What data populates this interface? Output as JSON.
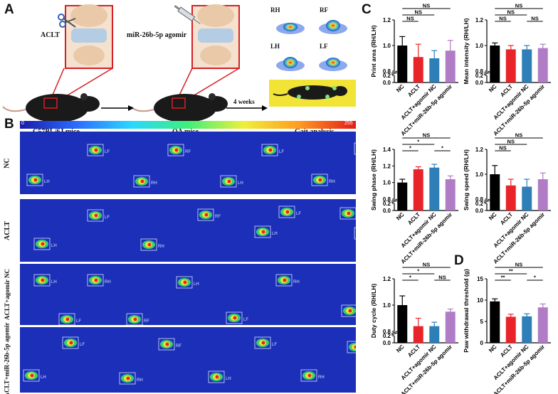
{
  "panels": {
    "A": "A",
    "B": "B",
    "C": "C",
    "D": "D"
  },
  "panel_a": {
    "aclt_label": "ACLT",
    "agomir_label": "miR-26b-5p agomir",
    "mouse1_caption": "C57BL/6J mice",
    "mouse2_caption": "OA mice",
    "time_label": "4 weeks",
    "gait_caption": "Gait analysis",
    "paw_labels": [
      "RH",
      "RF",
      "LH",
      "LF"
    ]
  },
  "panel_b": {
    "colorbar_min": "0",
    "colorbar_max": "255",
    "row_labels": [
      "NC",
      "ACLT",
      "ACLT+agomir NC",
      "ACLT+miR-26b-5p agomir"
    ],
    "paw_tags": [
      "LH",
      "LF",
      "RH",
      "RF"
    ]
  },
  "colors": {
    "NC": "#000000",
    "ACLT": "#e8242a",
    "ACLT+agomir NC": "#2e7fb8",
    "ACLT+miR-26b-5p agomir": "#b07cc6",
    "heatmap_bg": "#1c2fb8"
  },
  "chart_data": [
    {
      "type": "bar",
      "title": "",
      "ylabel": "Print area (RH/LH)",
      "categories": [
        "NC",
        "ACLT",
        "ACLT+agomir NC",
        "ACLT+miR-26b-5p agomir"
      ],
      "values": [
        1.0,
        0.91,
        0.9,
        0.96
      ],
      "errors": [
        0.07,
        0.1,
        0.06,
        0.08
      ],
      "ylim": [
        0,
        1.2
      ],
      "axis_break": [
        0.2,
        0.8
      ],
      "yticks": [
        "0.0",
        "0.2",
        "0.8",
        "1.0",
        "1.2"
      ],
      "significance": [
        {
          "pair": [
            0,
            1
          ],
          "label": "NS"
        },
        {
          "pair": [
            0,
            2
          ],
          "label": "NS"
        },
        {
          "pair": [
            0,
            3
          ],
          "label": "NS"
        }
      ]
    },
    {
      "type": "bar",
      "title": "",
      "ylabel": "Mean intensity (RH/LH)",
      "categories": [
        "NC",
        "ACLT",
        "ACLT+agomir NC",
        "ACLT+miR-26b-5p agomir"
      ],
      "values": [
        1.0,
        0.97,
        0.97,
        0.98
      ],
      "errors": [
        0.02,
        0.03,
        0.03,
        0.03
      ],
      "ylim": [
        0,
        1.2
      ],
      "axis_break": [
        0.2,
        0.8
      ],
      "yticks": [
        "0.0",
        "0.2",
        "0.8",
        "1.0",
        "1.2"
      ],
      "significance": [
        {
          "pair": [
            0,
            1
          ],
          "label": "NS"
        },
        {
          "pair": [
            0,
            2
          ],
          "label": "NS"
        },
        {
          "pair": [
            0,
            3
          ],
          "label": "NS"
        },
        {
          "pair": [
            2,
            3
          ],
          "label": "NS"
        }
      ]
    },
    {
      "type": "bar",
      "title": "",
      "ylabel": "Swing phase (RH/LH)",
      "categories": [
        "NC",
        "ACLT",
        "ACLT+agomir NC",
        "ACLT+miR-26b-5p agomir"
      ],
      "values": [
        1.0,
        1.16,
        1.18,
        1.04
      ],
      "errors": [
        0.04,
        0.03,
        0.04,
        0.04
      ],
      "ylim": [
        0,
        1.4
      ],
      "axis_break": [
        0.2,
        0.8
      ],
      "yticks": [
        "0.0",
        "0.2",
        "0.8",
        "1.0",
        "1.2",
        "1.4"
      ],
      "significance": [
        {
          "pair": [
            0,
            1
          ],
          "label": "*"
        },
        {
          "pair": [
            0,
            2
          ],
          "label": "*"
        },
        {
          "pair": [
            0,
            3
          ],
          "label": "NS"
        },
        {
          "pair": [
            2,
            3
          ],
          "label": "*"
        }
      ]
    },
    {
      "type": "bar",
      "title": "",
      "ylabel": "Swing speed (RH/LH)",
      "categories": [
        "NC",
        "ACLT",
        "ACLT+agomir NC",
        "ACLT+miR-26b-5p agomir"
      ],
      "values": [
        1.0,
        0.91,
        0.9,
        0.96
      ],
      "errors": [
        0.07,
        0.05,
        0.06,
        0.05
      ],
      "ylim": [
        0,
        1.2
      ],
      "axis_break": [
        0.2,
        0.8
      ],
      "yticks": [
        "0.0",
        "0.2",
        "0.8",
        "1.0",
        "1.2"
      ],
      "significance": [
        {
          "pair": [
            0,
            1
          ],
          "label": "NS"
        },
        {
          "pair": [
            0,
            2
          ],
          "label": "NS"
        },
        {
          "pair": [
            0,
            3
          ],
          "label": "NS"
        }
      ]
    },
    {
      "type": "bar",
      "title": "",
      "ylabel": "Duty cycle (RH/LH)",
      "categories": [
        "NC",
        "ACLT",
        "ACLT+agomir NC",
        "ACLT+miR-26b-5p agomir"
      ],
      "values": [
        1.0,
        0.84,
        0.84,
        0.95
      ],
      "errors": [
        0.07,
        0.06,
        0.03,
        0.02
      ],
      "ylim": [
        0,
        1.2
      ],
      "axis_break": [
        0.2,
        0.8
      ],
      "yticks": [
        "0.0",
        "0.2",
        "0.8",
        "1.0",
        "1.2"
      ],
      "significance": [
        {
          "pair": [
            0,
            1
          ],
          "label": "*"
        },
        {
          "pair": [
            0,
            2
          ],
          "label": "*"
        },
        {
          "pair": [
            0,
            3
          ],
          "label": "NS"
        },
        {
          "pair": [
            2,
            3
          ],
          "label": "NS"
        }
      ]
    },
    {
      "type": "bar",
      "title": "",
      "ylabel": "Paw withdrawal threshold (g)",
      "categories": [
        "NC",
        "ACLT",
        "ACLT+agomir NC",
        "ACLT+miR-26b-5p agomir"
      ],
      "values": [
        9.7,
        6.1,
        6.2,
        8.3
      ],
      "errors": [
        0.6,
        0.6,
        0.6,
        0.8
      ],
      "ylim": [
        0,
        15
      ],
      "yticks": [
        "0",
        "5",
        "10",
        "15"
      ],
      "significance": [
        {
          "pair": [
            0,
            1
          ],
          "label": "**"
        },
        {
          "pair": [
            0,
            2
          ],
          "label": "**"
        },
        {
          "pair": [
            0,
            3
          ],
          "label": "NS"
        },
        {
          "pair": [
            2,
            3
          ],
          "label": "*"
        }
      ]
    }
  ]
}
